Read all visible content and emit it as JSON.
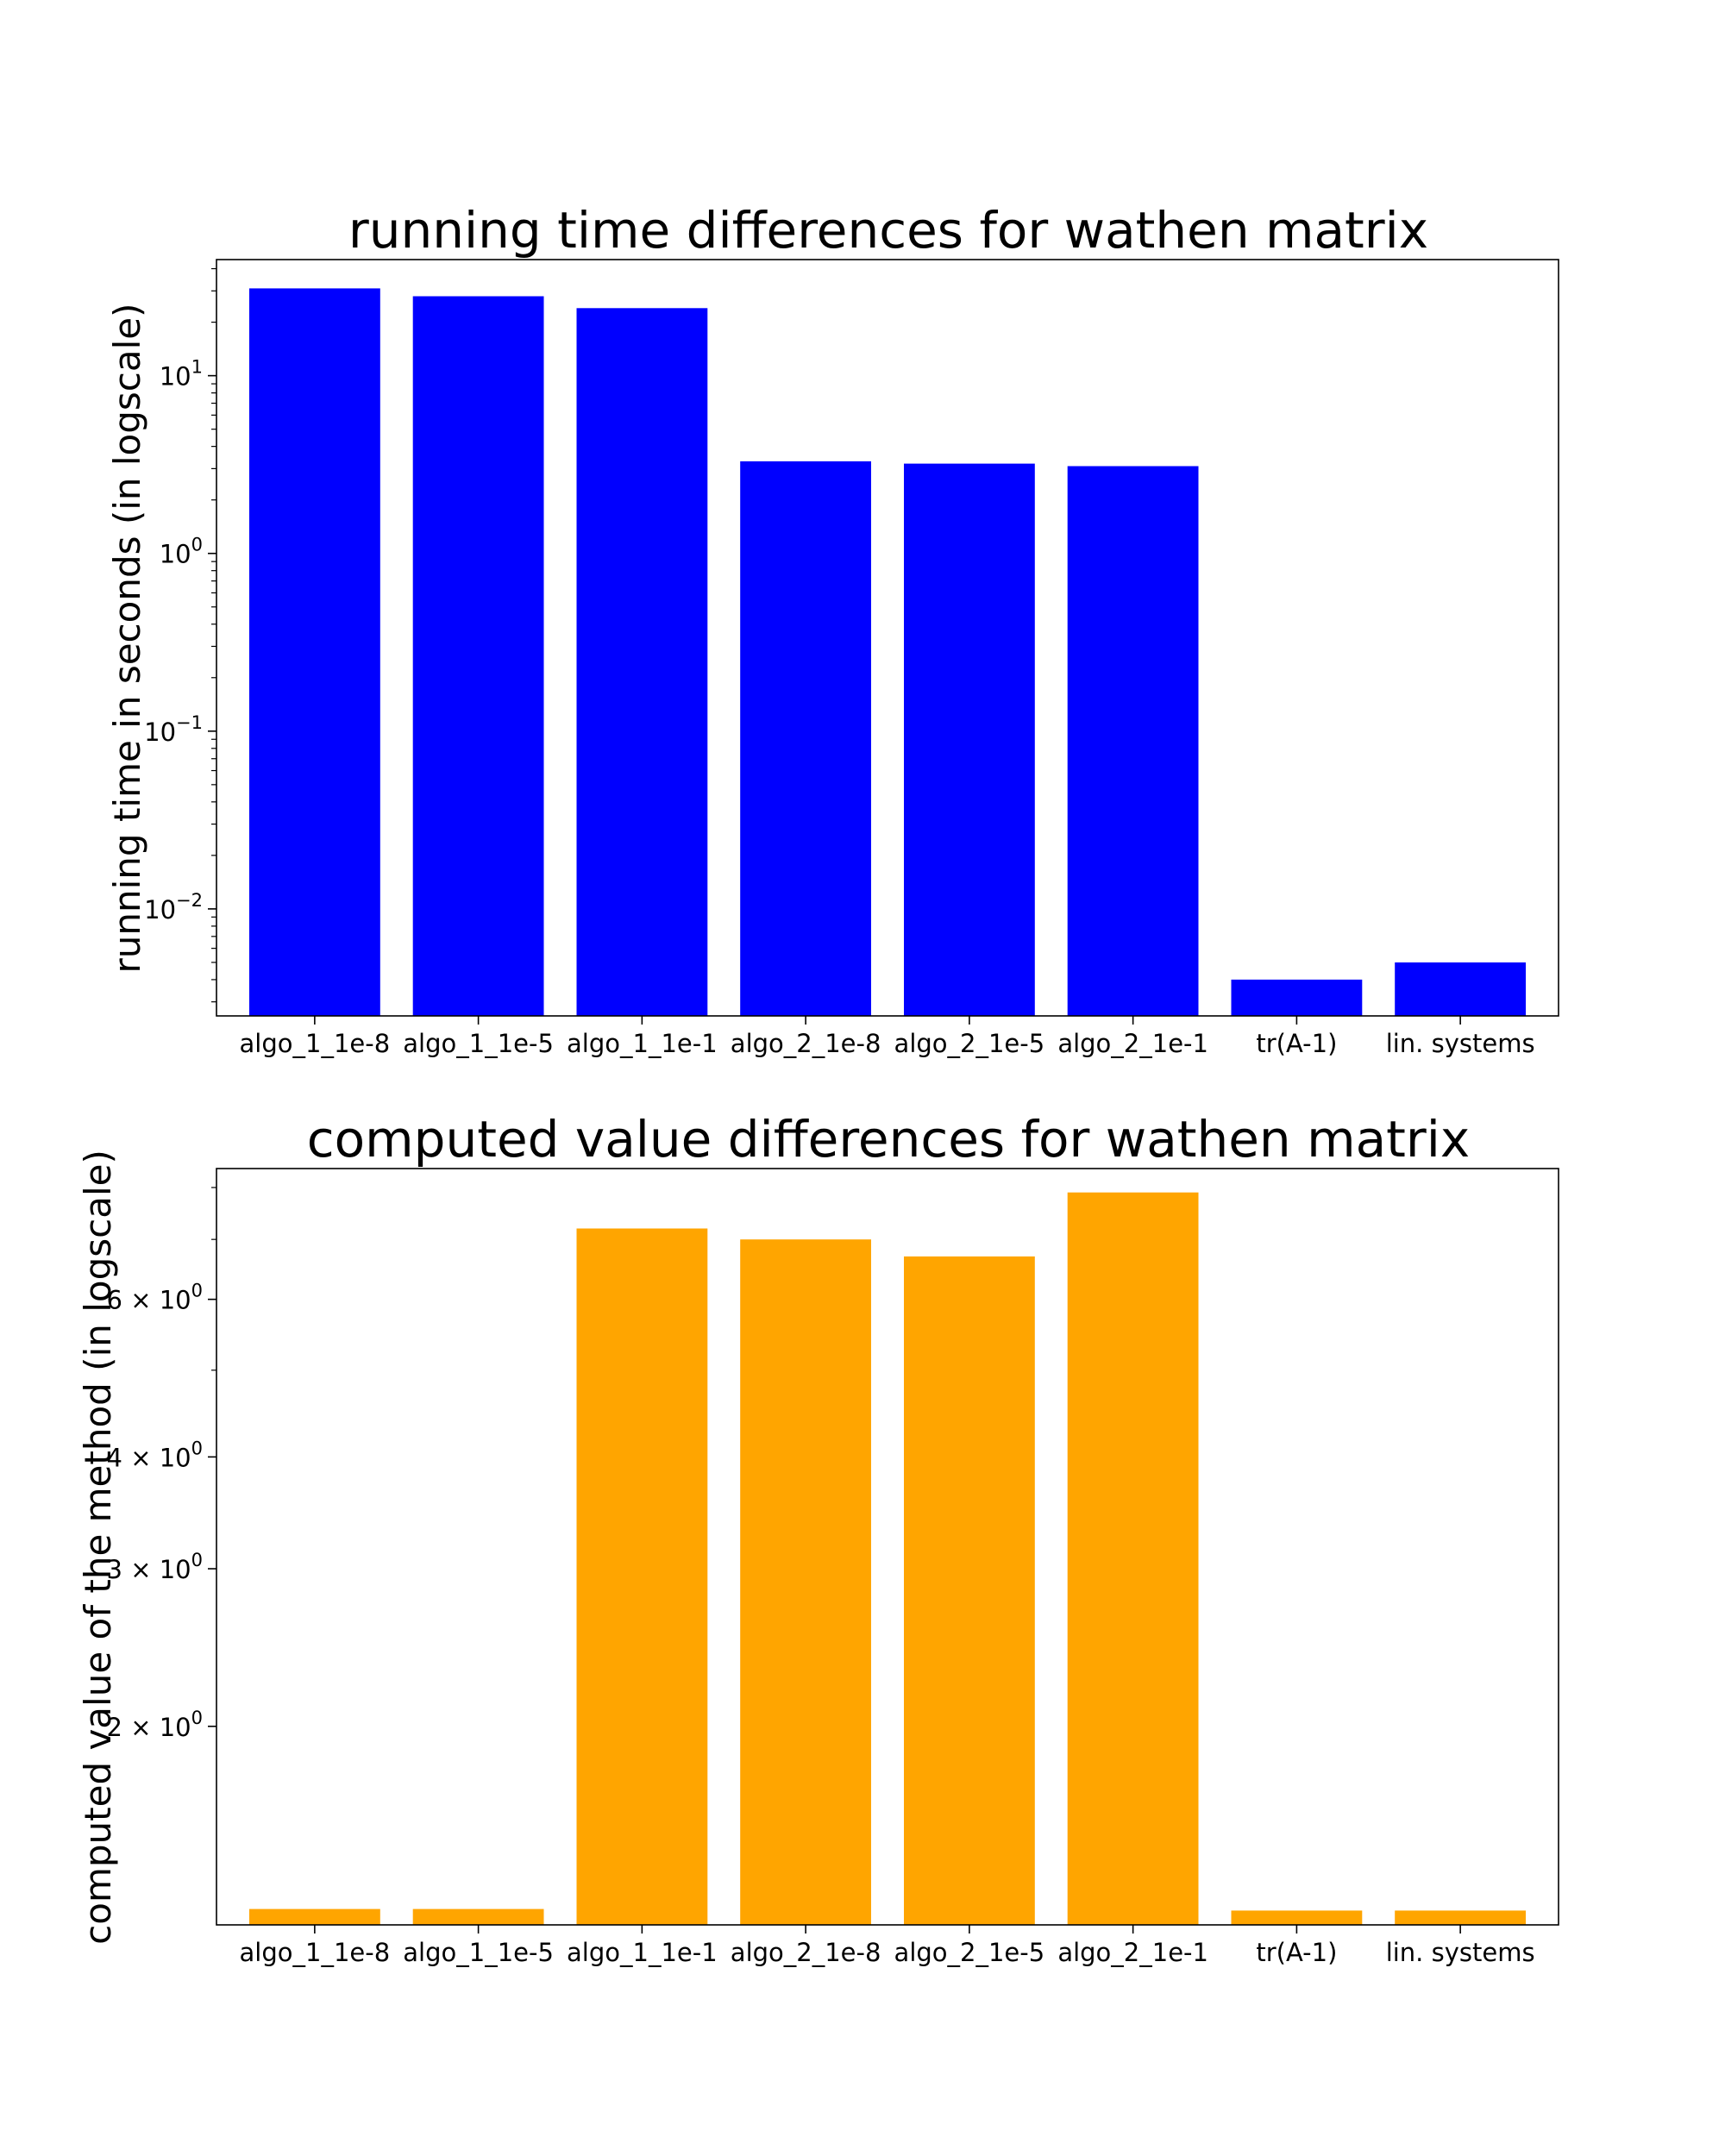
{
  "chart_data": [
    {
      "type": "bar",
      "title": "running time differences for wathen matrix",
      "xlabel": "",
      "ylabel": "running time in seconds (in logscale)",
      "yscale": "log",
      "ylim": [
        0.0025,
        45
      ],
      "ticks": [
        {
          "value": 10,
          "base": "10",
          "exp": "1"
        },
        {
          "value": 1,
          "base": "10",
          "exp": "0"
        },
        {
          "value": 0.1,
          "base": "10",
          "exp": "−1"
        },
        {
          "value": 0.01,
          "base": "10",
          "exp": "−2"
        }
      ],
      "categories": [
        "algo_1_1e-8",
        "algo_1_1e-5",
        "algo_1_1e-1",
        "algo_2_1e-8",
        "algo_2_1e-5",
        "algo_2_1e-1",
        "tr(A-1)",
        "lin. systems"
      ],
      "values": [
        31,
        28,
        24,
        3.3,
        3.2,
        3.1,
        0.004,
        0.005
      ],
      "color": "#0000ff",
      "grid": false,
      "legend": "none"
    },
    {
      "type": "bar",
      "title": "computed value differences for wathen matrix",
      "xlabel": "",
      "ylabel": "computed value of the method (in logscale)",
      "yscale": "log",
      "ylim": [
        1.2,
        8.4
      ],
      "ticks": [
        {
          "value": 6,
          "base": "6 × 10",
          "exp": "0"
        },
        {
          "value": 4,
          "base": "4 × 10",
          "exp": "0"
        },
        {
          "value": 3,
          "base": "3 × 10",
          "exp": "0"
        },
        {
          "value": 2,
          "base": "2 × 10",
          "exp": "0"
        }
      ],
      "categories": [
        "algo_1_1e-8",
        "algo_1_1e-5",
        "algo_1_1e-1",
        "algo_2_1e-8",
        "algo_2_1e-5",
        "algo_2_1e-1",
        "tr(A-1)",
        "lin. systems"
      ],
      "values": [
        1.25,
        1.25,
        7.2,
        7.0,
        6.7,
        7.9,
        1.245,
        1.245
      ],
      "color": "#ffa500",
      "grid": false,
      "legend": "none"
    }
  ]
}
